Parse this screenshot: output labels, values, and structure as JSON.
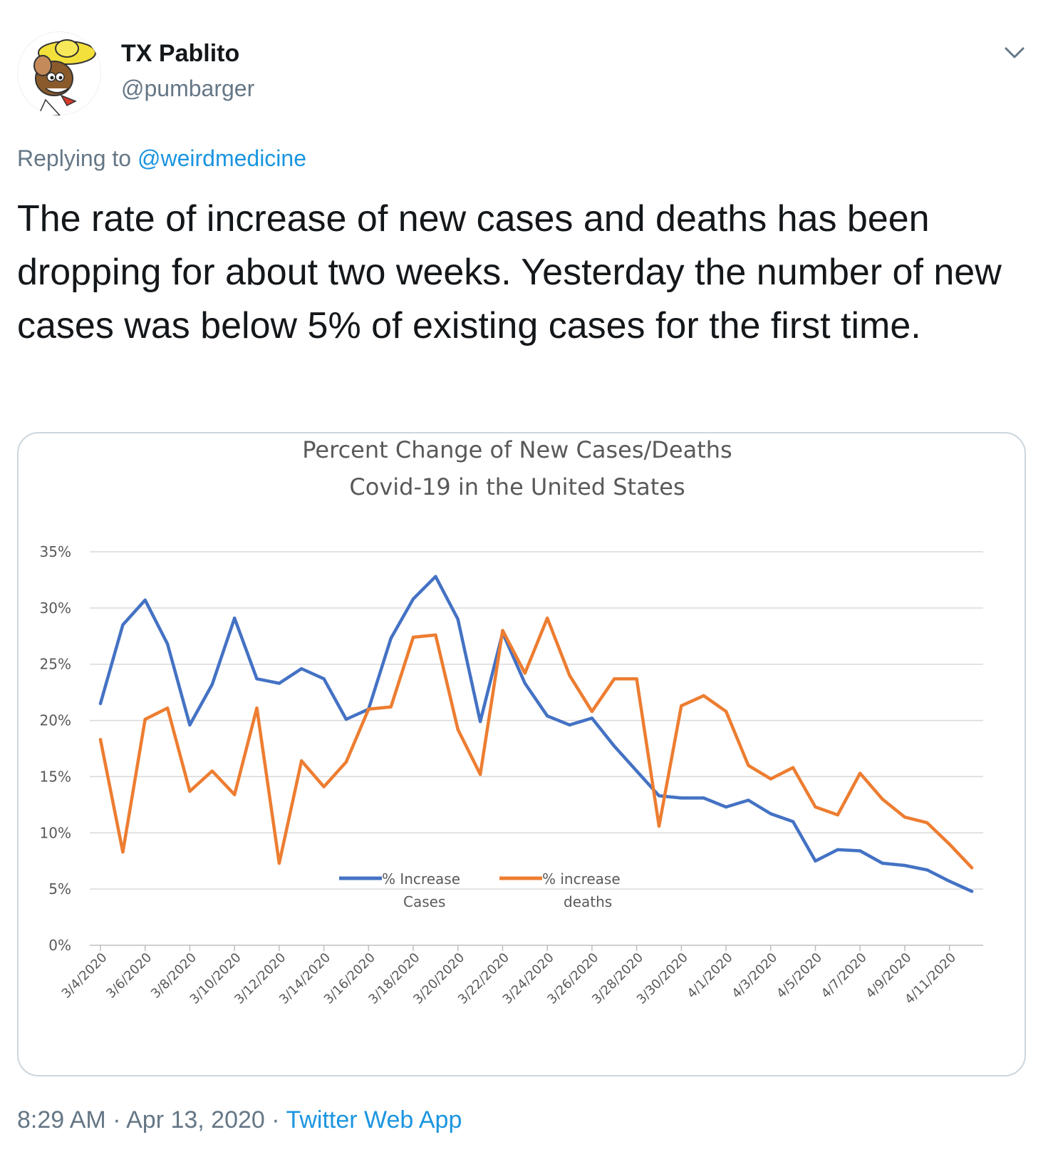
{
  "user": {
    "display_name": "TX Pablito",
    "handle": "@pumbarger"
  },
  "reply": {
    "prefix": "Replying to",
    "mention": "@weirdmedicine"
  },
  "tweet": {
    "text": "The rate of increase of new cases and deaths has been dropping for about two weeks. Yesterday the number of new cases was below 5% of existing cases for the first time."
  },
  "meta": {
    "time": "8:29 AM",
    "separator": "·",
    "date": "Apr 13, 2020",
    "source": "Twitter Web App"
  },
  "icons": {
    "avatar": "speedy-gonzales-avatar",
    "menu": "chevron-down-icon"
  },
  "colors": {
    "link": "#1b95e0",
    "secondary_text": "#657786",
    "cases_series": "#4472c4",
    "deaths_series": "#ed7d31"
  },
  "chart_data": {
    "type": "line",
    "title": "Percent Change of New Cases/Deaths",
    "subtitle": "Covid-19 in the United States",
    "ylim": [
      0,
      35
    ],
    "yticks": [
      "0%",
      "5%",
      "10%",
      "15%",
      "20%",
      "25%",
      "30%",
      "35%"
    ],
    "grid": true,
    "legend_position": "inside-bottom-center",
    "xtick_labels": [
      "3/4/2020",
      "3/6/2020",
      "3/8/2020",
      "3/10/2020",
      "3/12/2020",
      "3/14/2020",
      "3/16/2020",
      "3/18/2020",
      "3/20/2020",
      "3/22/2020",
      "3/24/2020",
      "3/26/2020",
      "3/28/2020",
      "3/30/2020",
      "4/1/2020",
      "4/3/2020",
      "4/5/2020",
      "4/7/2020",
      "4/9/2020",
      "4/11/2020"
    ],
    "x": [
      "3/4/2020",
      "3/5/2020",
      "3/6/2020",
      "3/7/2020",
      "3/8/2020",
      "3/9/2020",
      "3/10/2020",
      "3/11/2020",
      "3/12/2020",
      "3/13/2020",
      "3/14/2020",
      "3/15/2020",
      "3/16/2020",
      "3/17/2020",
      "3/18/2020",
      "3/19/2020",
      "3/20/2020",
      "3/21/2020",
      "3/22/2020",
      "3/23/2020",
      "3/24/2020",
      "3/25/2020",
      "3/26/2020",
      "3/27/2020",
      "3/28/2020",
      "3/29/2020",
      "3/30/2020",
      "3/31/2020",
      "4/1/2020",
      "4/2/2020",
      "4/3/2020",
      "4/4/2020",
      "4/5/2020",
      "4/6/2020",
      "4/7/2020",
      "4/8/2020",
      "4/9/2020",
      "4/10/2020",
      "4/11/2020",
      "4/12/2020"
    ],
    "series": [
      {
        "name": "% Increase Cases",
        "legend_lines": [
          "% Increase",
          "Cases"
        ],
        "color": "#4472c4",
        "values": [
          21.5,
          28.5,
          30.7,
          26.8,
          19.6,
          23.2,
          29.1,
          23.7,
          23.3,
          24.6,
          23.7,
          20.1,
          21.0,
          27.3,
          30.8,
          32.8,
          29.0,
          19.9,
          27.8,
          23.3,
          20.4,
          19.6,
          20.2,
          17.7,
          15.5,
          13.3,
          13.1,
          13.1,
          12.3,
          12.9,
          11.7,
          11.0,
          7.5,
          8.5,
          8.4,
          7.3,
          7.1,
          6.7,
          5.7,
          4.8
        ]
      },
      {
        "name": "% increase deaths",
        "legend_lines": [
          "% increase",
          "deaths"
        ],
        "color": "#ed7d31",
        "values": [
          18.3,
          8.3,
          20.1,
          21.1,
          13.7,
          15.5,
          13.4,
          21.1,
          7.3,
          16.4,
          14.1,
          16.3,
          21.0,
          21.2,
          27.4,
          27.6,
          19.2,
          15.2,
          28.0,
          24.2,
          29.1,
          24.0,
          20.8,
          23.7,
          23.7,
          10.6,
          21.3,
          22.2,
          20.8,
          16.0,
          14.8,
          15.8,
          12.3,
          11.6,
          15.3,
          13.0,
          11.4,
          10.9,
          9.0,
          6.9
        ]
      }
    ]
  }
}
